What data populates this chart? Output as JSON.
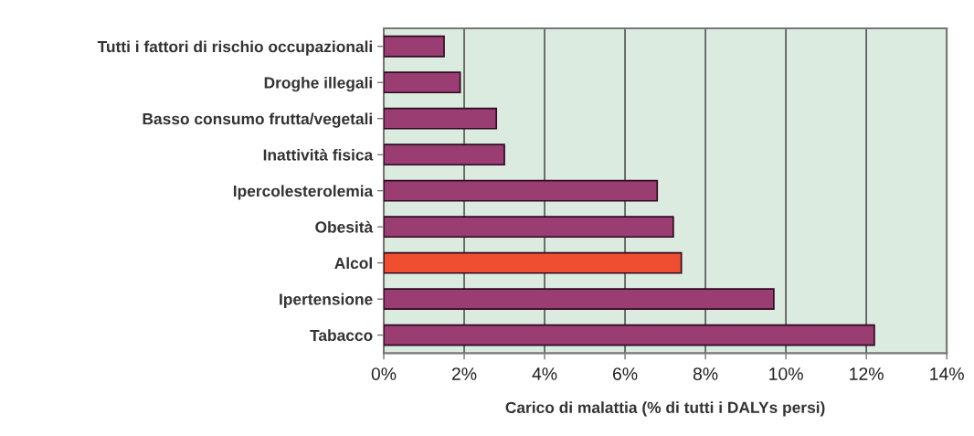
{
  "chart_data": {
    "type": "bar",
    "orientation": "horizontal",
    "categories": [
      "Tutti i fattori di rischio occupazionali",
      "Droghe illegali",
      "Basso consumo frutta/vegetali",
      "Inattività fisica",
      "Ipercolesterolemia",
      "Obesità",
      "Alcol",
      "Ipertensione",
      "Tabacco"
    ],
    "values": [
      1.5,
      1.9,
      2.8,
      3.0,
      6.8,
      7.2,
      7.4,
      9.7,
      12.2
    ],
    "colors": [
      "#993d72",
      "#993d72",
      "#993d72",
      "#993d72",
      "#993d72",
      "#993d72",
      "#f04e30",
      "#993d72",
      "#993d72"
    ],
    "xlabel": "Carico di malattia (% di tutti i DALYs persi)",
    "xlim": [
      0,
      14
    ],
    "xticks": [
      {
        "value": 0,
        "label": "0%"
      },
      {
        "value": 2,
        "label": "2%"
      },
      {
        "value": 4,
        "label": "4%"
      },
      {
        "value": 6,
        "label": "6%"
      },
      {
        "value": 8,
        "label": "8%"
      },
      {
        "value": 10,
        "label": "10%"
      },
      {
        "value": 12,
        "label": "12%"
      },
      {
        "value": 14,
        "label": "14%"
      }
    ],
    "grid": "x"
  }
}
